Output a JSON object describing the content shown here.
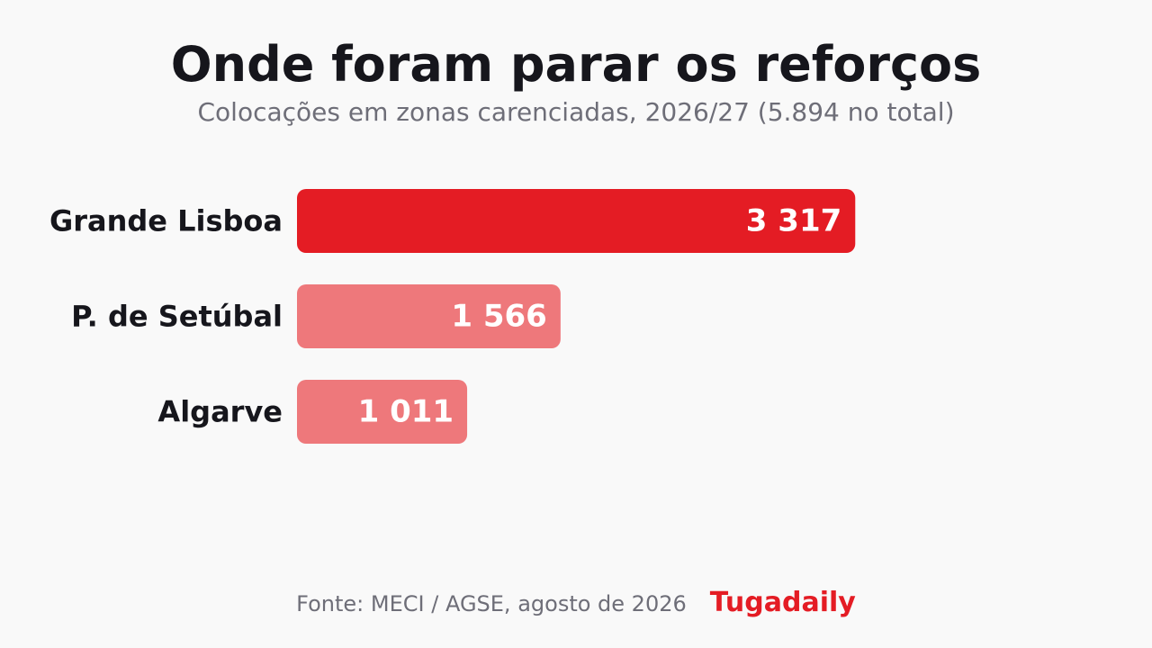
{
  "title": "Onde foram parar os reforços",
  "subtitle": "Colocações em zonas carenciadas, 2026/27 (5.894 no total)",
  "footer": {
    "source": "Fonte: MECI / AGSE, agosto de 2026",
    "brand": "Tugadaily"
  },
  "colors": {
    "primary": "#e41c24",
    "secondary": "#ee787b",
    "brand": "#e41c24"
  },
  "chart_data": {
    "type": "bar",
    "orientation": "horizontal",
    "title": "Onde foram parar os reforços",
    "subtitle": "Colocações em zonas carenciadas, 2026/27 (5.894 no total)",
    "categories": [
      "Grande Lisboa",
      "P. de Setúbal",
      "Algarve"
    ],
    "values": [
      3317,
      1566,
      1011
    ],
    "value_labels": [
      "3 317",
      "1 566",
      "1 011"
    ],
    "highlight": [
      true,
      false,
      false
    ],
    "xlabel": "",
    "ylabel": "",
    "grid": false
  }
}
